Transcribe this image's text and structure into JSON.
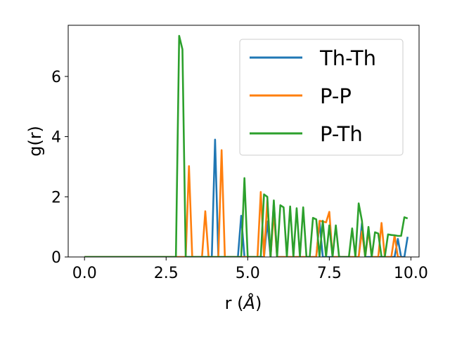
{
  "chart_data": {
    "type": "line",
    "xlabel": "r (",
    "xlabel_unit": "Å",
    "xlabel_close": ")",
    "ylabel": "g(r)",
    "xlim": [
      -0.5,
      10.25
    ],
    "ylim": [
      0,
      7.7
    ],
    "xticks": [
      0.0,
      2.5,
      5.0,
      7.5,
      10.0
    ],
    "xtick_labels": [
      "0.0",
      "2.5",
      "5.0",
      "7.5",
      "10.0"
    ],
    "yticks": [
      0,
      2,
      4,
      6
    ],
    "ytick_labels": [
      "0",
      "2",
      "4",
      "6"
    ],
    "grid": false,
    "legend_position": "top-right",
    "series": [
      {
        "name": "Th-Th",
        "color": "#1f77b4",
        "x": [
          0,
          3.8,
          3.9,
          4.0,
          4.1,
          4.2,
          4.7,
          4.8,
          4.9,
          5.5,
          5.6,
          5.7,
          5.8,
          5.9,
          6.0,
          6.9,
          7.0,
          7.1,
          7.2,
          7.3,
          7.4,
          7.5,
          8.4,
          8.5,
          8.6,
          8.7,
          9.5,
          9.6,
          9.7,
          9.8,
          9.9
        ],
        "y": [
          0,
          0,
          0,
          3.9,
          0,
          0,
          0,
          1.37,
          0,
          0,
          1.18,
          0,
          1.8,
          0,
          0,
          0,
          0,
          0,
          1.18,
          0,
          0,
          0,
          0,
          1.12,
          0,
          0,
          0,
          0.6,
          0,
          0,
          0.67
        ]
      },
      {
        "name": "P-P",
        "color": "#ff7f0e",
        "x": [
          0,
          3.1,
          3.2,
          3.3,
          3.6,
          3.7,
          3.8,
          4.1,
          4.2,
          4.3,
          5.2,
          5.3,
          5.4,
          5.5,
          5.6,
          5.7,
          5.8,
          5.9,
          6.0,
          6.5,
          6.6,
          6.7,
          6.8,
          6.9,
          7.0,
          7.1,
          7.2,
          7.3,
          7.4,
          7.5,
          7.6,
          7.7,
          7.8,
          7.9,
          8.0,
          8.1,
          8.2,
          8.3,
          8.4,
          8.5,
          8.6,
          8.7,
          8.8,
          8.9,
          9.0,
          9.1,
          9.2,
          9.3,
          9.4,
          9.5,
          9.6,
          9.7
        ],
        "y": [
          0,
          0,
          3.02,
          0,
          0,
          1.52,
          0,
          0,
          3.55,
          0,
          0,
          0,
          2.16,
          0,
          1.88,
          0,
          1.5,
          0,
          0,
          0,
          0,
          0,
          0,
          0,
          0,
          0,
          1.2,
          1.18,
          1.15,
          1.5,
          0,
          0,
          0,
          0,
          0,
          0,
          0,
          0,
          0,
          0.85,
          0,
          0.88,
          0,
          0,
          0,
          1.13,
          0,
          0,
          0,
          0.72,
          0,
          0
        ]
      },
      {
        "name": "P-Th",
        "color": "#2ca02c",
        "x": [
          0,
          2.8,
          2.9,
          3.0,
          3.1,
          4.7,
          4.8,
          4.9,
          5.0,
          5.4,
          5.5,
          5.6,
          5.7,
          5.8,
          5.9,
          6.0,
          6.1,
          6.2,
          6.3,
          6.4,
          6.5,
          6.6,
          6.7,
          6.8,
          6.9,
          7.0,
          7.1,
          7.2,
          7.3,
          7.4,
          7.5,
          7.6,
          7.7,
          7.8,
          7.9,
          8.0,
          8.1,
          8.2,
          8.3,
          8.4,
          8.5,
          8.6,
          8.7,
          8.8,
          8.9,
          9.0,
          9.1,
          9.2,
          9.3,
          9.4,
          9.5,
          9.6,
          9.7,
          9.8,
          9.9
        ],
        "y": [
          0,
          0,
          7.35,
          6.9,
          0,
          0,
          0,
          2.62,
          0,
          0,
          2.08,
          2.0,
          0,
          1.88,
          0,
          1.72,
          1.65,
          0,
          1.68,
          0,
          1.62,
          0,
          1.65,
          0,
          0,
          1.3,
          1.25,
          0,
          1.2,
          0,
          1.05,
          0,
          1.05,
          0,
          0,
          0,
          0,
          0.95,
          0,
          1.78,
          1.2,
          0,
          1.0,
          0,
          0.82,
          0.78,
          0,
          0,
          0.75,
          0.73,
          0.72,
          0.7,
          0.7,
          1.32,
          1.28
        ]
      }
    ]
  }
}
